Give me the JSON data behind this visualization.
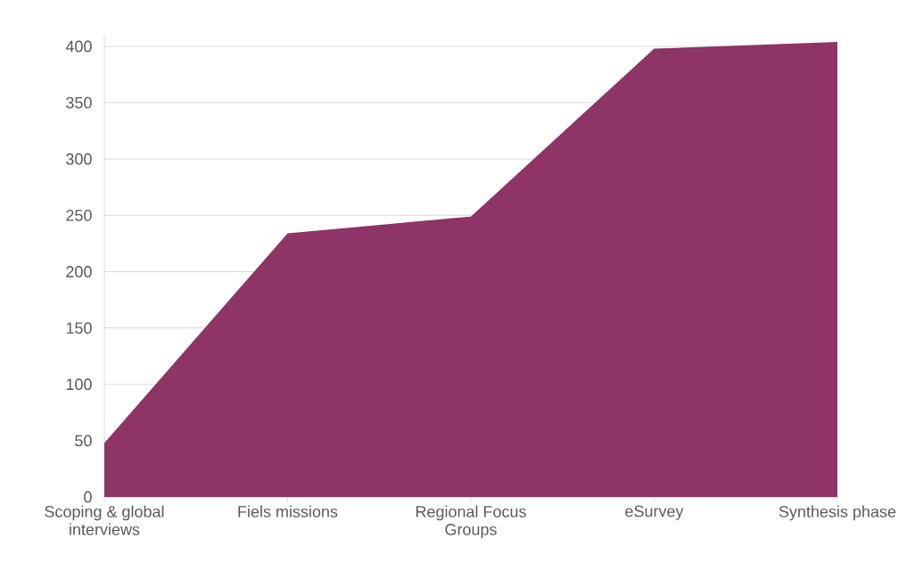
{
  "chart_data": {
    "type": "area",
    "categories": [
      "Scoping & global interviews",
      "Fiels missions",
      "Regional Focus Groups",
      "eSurvey",
      "Synthesis phase"
    ],
    "values": [
      48,
      234,
      249,
      398,
      404
    ],
    "color": "#8e3466",
    "ylim": [
      0,
      410
    ],
    "yticks": [
      0,
      50,
      100,
      150,
      200,
      250,
      300,
      350,
      400
    ],
    "grid": "y"
  }
}
